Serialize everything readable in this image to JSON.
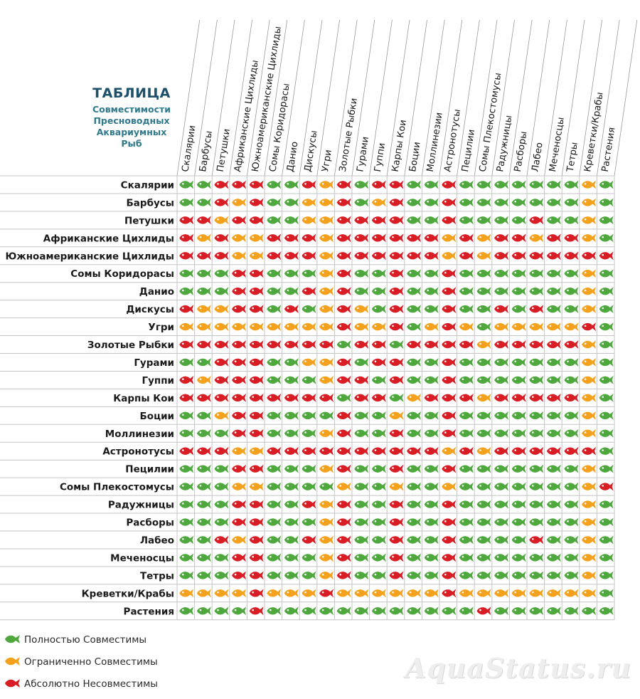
{
  "title": {
    "main": "ТАБЛИЦА",
    "line1": "Совместимости",
    "line2": "Пресноводных",
    "line3": "Аквариумных",
    "line4": "Рыб"
  },
  "colors": {
    "g": "#4ea83d",
    "y": "#f4a11d",
    "r": "#d81d25",
    "grid": "#c4c4c4",
    "diag": "#999999",
    "text": "#1a1a1a"
  },
  "legend": [
    {
      "color": "g",
      "label": "Полностью Совместимы"
    },
    {
      "color": "y",
      "label": "Ограниченно Совместимы"
    },
    {
      "color": "r",
      "label": "Абсолютно Несовместимы"
    }
  ],
  "watermark": "AquaStatus.ru",
  "chart_data": {
    "type": "table",
    "species": [
      "Скалярии",
      "Барбусы",
      "Петушки",
      "Африканские Цихлиды",
      "Южноамериканские Цихлиды",
      "Сомы Коридорасы",
      "Данио",
      "Дискусы",
      "Угри",
      "Золотые Рыбки",
      "Гурами",
      "Гуппи",
      "Карпы Кои",
      "Боции",
      "Моллинезии",
      "Астронотусы",
      "Пецилии",
      "Сомы Плекостомусы",
      "Радужницы",
      "Расборы",
      "Лабео",
      "Меченосцы",
      "Тетры",
      "Креветки/Крабы",
      "Растения"
    ],
    "rows": [
      {
        "label": "Скалярии",
        "cells": [
          "g",
          "g",
          "r",
          "r",
          "r",
          "g",
          "g",
          "r",
          "y",
          "r",
          "g",
          "r",
          "r",
          "g",
          "g",
          "r",
          "g",
          "g",
          "g",
          "g",
          "g",
          "g",
          "g",
          "y",
          "g"
        ]
      },
      {
        "label": "Барбусы",
        "cells": [
          "g",
          "g",
          "r",
          "y",
          "r",
          "g",
          "g",
          "y",
          "y",
          "r",
          "g",
          "y",
          "r",
          "g",
          "g",
          "r",
          "g",
          "g",
          "g",
          "g",
          "g",
          "g",
          "g",
          "y",
          "g"
        ]
      },
      {
        "label": "Петушки",
        "cells": [
          "r",
          "r",
          "y",
          "r",
          "r",
          "g",
          "g",
          "y",
          "y",
          "r",
          "r",
          "r",
          "r",
          "g",
          "g",
          "r",
          "g",
          "g",
          "g",
          "g",
          "r",
          "g",
          "g",
          "y",
          "g"
        ]
      },
      {
        "label": "Африканские Цихлиды",
        "cells": [
          "r",
          "y",
          "r",
          "y",
          "y",
          "r",
          "r",
          "r",
          "y",
          "r",
          "r",
          "r",
          "r",
          "r",
          "r",
          "y",
          "r",
          "y",
          "r",
          "r",
          "y",
          "r",
          "r",
          "y",
          "g"
        ]
      },
      {
        "label": "Южноамериканские Цихлиды",
        "cells": [
          "r",
          "r",
          "r",
          "y",
          "y",
          "r",
          "r",
          "r",
          "y",
          "r",
          "r",
          "r",
          "r",
          "r",
          "r",
          "y",
          "r",
          "y",
          "r",
          "r",
          "r",
          "r",
          "r",
          "r",
          "r"
        ]
      },
      {
        "label": "Сомы Коридорасы",
        "cells": [
          "g",
          "g",
          "g",
          "r",
          "r",
          "g",
          "g",
          "g",
          "y",
          "r",
          "g",
          "g",
          "r",
          "g",
          "g",
          "r",
          "g",
          "g",
          "g",
          "g",
          "g",
          "g",
          "g",
          "y",
          "g"
        ]
      },
      {
        "label": "Данио",
        "cells": [
          "g",
          "g",
          "g",
          "r",
          "r",
          "g",
          "g",
          "r",
          "y",
          "r",
          "g",
          "g",
          "r",
          "g",
          "g",
          "r",
          "g",
          "g",
          "g",
          "g",
          "g",
          "g",
          "g",
          "y",
          "g"
        ]
      },
      {
        "label": "Дискусы",
        "cells": [
          "r",
          "y",
          "y",
          "r",
          "r",
          "g",
          "r",
          "g",
          "y",
          "r",
          "y",
          "g",
          "r",
          "g",
          "g",
          "r",
          "g",
          "g",
          "r",
          "g",
          "r",
          "g",
          "g",
          "y",
          "g"
        ]
      },
      {
        "label": "Угри",
        "cells": [
          "y",
          "y",
          "y",
          "y",
          "y",
          "y",
          "y",
          "y",
          "y",
          "r",
          "y",
          "y",
          "r",
          "g",
          "y",
          "r",
          "y",
          "g",
          "y",
          "y",
          "y",
          "y",
          "y",
          "r",
          "g"
        ]
      },
      {
        "label": "Золотые Рыбки",
        "cells": [
          "r",
          "r",
          "r",
          "r",
          "r",
          "r",
          "r",
          "r",
          "r",
          "g",
          "r",
          "r",
          "g",
          "r",
          "r",
          "r",
          "r",
          "y",
          "r",
          "r",
          "r",
          "r",
          "r",
          "y",
          "g"
        ]
      },
      {
        "label": "Гурами",
        "cells": [
          "g",
          "g",
          "r",
          "r",
          "r",
          "g",
          "g",
          "y",
          "y",
          "r",
          "g",
          "r",
          "r",
          "g",
          "g",
          "r",
          "g",
          "g",
          "g",
          "g",
          "g",
          "g",
          "g",
          "y",
          "g"
        ]
      },
      {
        "label": "Гуппи",
        "cells": [
          "r",
          "y",
          "r",
          "r",
          "r",
          "g",
          "g",
          "g",
          "y",
          "r",
          "r",
          "g",
          "r",
          "g",
          "g",
          "r",
          "g",
          "g",
          "g",
          "g",
          "g",
          "g",
          "g",
          "y",
          "g"
        ]
      },
      {
        "label": "Карпы Кои",
        "cells": [
          "r",
          "r",
          "r",
          "r",
          "r",
          "r",
          "r",
          "r",
          "r",
          "g",
          "r",
          "r",
          "g",
          "y",
          "r",
          "r",
          "r",
          "y",
          "r",
          "r",
          "r",
          "r",
          "r",
          "y",
          "g"
        ]
      },
      {
        "label": "Боции",
        "cells": [
          "g",
          "g",
          "y",
          "r",
          "r",
          "g",
          "g",
          "g",
          "g",
          "r",
          "g",
          "g",
          "y",
          "g",
          "g",
          "r",
          "g",
          "g",
          "g",
          "g",
          "g",
          "g",
          "g",
          "y",
          "g"
        ]
      },
      {
        "label": "Моллинезии",
        "cells": [
          "g",
          "g",
          "g",
          "r",
          "r",
          "g",
          "g",
          "g",
          "y",
          "r",
          "g",
          "g",
          "r",
          "g",
          "g",
          "r",
          "g",
          "g",
          "g",
          "g",
          "g",
          "g",
          "g",
          "y",
          "g"
        ]
      },
      {
        "label": "Астронотусы",
        "cells": [
          "r",
          "r",
          "r",
          "y",
          "y",
          "r",
          "r",
          "r",
          "r",
          "r",
          "r",
          "r",
          "r",
          "r",
          "r",
          "y",
          "r",
          "y",
          "r",
          "r",
          "r",
          "r",
          "r",
          "r",
          "g"
        ]
      },
      {
        "label": "Пецилии",
        "cells": [
          "g",
          "g",
          "g",
          "r",
          "r",
          "g",
          "g",
          "g",
          "y",
          "r",
          "g",
          "g",
          "r",
          "g",
          "g",
          "r",
          "g",
          "g",
          "g",
          "g",
          "g",
          "g",
          "g",
          "y",
          "g"
        ]
      },
      {
        "label": "Сомы Плекостомусы",
        "cells": [
          "g",
          "g",
          "g",
          "y",
          "y",
          "g",
          "g",
          "g",
          "g",
          "y",
          "g",
          "g",
          "y",
          "g",
          "g",
          "y",
          "g",
          "g",
          "g",
          "g",
          "g",
          "g",
          "g",
          "y",
          "r"
        ]
      },
      {
        "label": "Радужницы",
        "cells": [
          "g",
          "g",
          "g",
          "r",
          "r",
          "g",
          "g",
          "r",
          "y",
          "r",
          "g",
          "g",
          "r",
          "g",
          "g",
          "r",
          "g",
          "g",
          "g",
          "g",
          "g",
          "g",
          "g",
          "y",
          "g"
        ]
      },
      {
        "label": "Расборы",
        "cells": [
          "g",
          "g",
          "g",
          "r",
          "r",
          "g",
          "g",
          "g",
          "y",
          "r",
          "g",
          "g",
          "r",
          "g",
          "g",
          "r",
          "g",
          "g",
          "g",
          "g",
          "g",
          "g",
          "g",
          "y",
          "g"
        ]
      },
      {
        "label": "Лабео",
        "cells": [
          "g",
          "g",
          "r",
          "y",
          "r",
          "g",
          "g",
          "r",
          "y",
          "r",
          "g",
          "g",
          "r",
          "g",
          "g",
          "r",
          "g",
          "g",
          "g",
          "g",
          "r",
          "g",
          "g",
          "y",
          "g"
        ]
      },
      {
        "label": "Меченосцы",
        "cells": [
          "g",
          "g",
          "g",
          "r",
          "r",
          "g",
          "g",
          "g",
          "y",
          "r",
          "g",
          "g",
          "r",
          "g",
          "g",
          "r",
          "g",
          "g",
          "g",
          "g",
          "g",
          "g",
          "g",
          "y",
          "g"
        ]
      },
      {
        "label": "Тетры",
        "cells": [
          "g",
          "g",
          "g",
          "r",
          "r",
          "g",
          "g",
          "g",
          "y",
          "r",
          "g",
          "g",
          "r",
          "g",
          "g",
          "r",
          "g",
          "g",
          "g",
          "g",
          "g",
          "g",
          "g",
          "y",
          "g"
        ]
      },
      {
        "label": "Креветки/Крабы",
        "cells": [
          "y",
          "y",
          "y",
          "y",
          "r",
          "y",
          "y",
          "y",
          "r",
          "y",
          "y",
          "y",
          "y",
          "y",
          "y",
          "r",
          "y",
          "y",
          "y",
          "y",
          "y",
          "y",
          "y",
          "y",
          "g"
        ]
      },
      {
        "label": "Растения",
        "cells": [
          "g",
          "g",
          "g",
          "g",
          "r",
          "g",
          "g",
          "g",
          "g",
          "g",
          "g",
          "g",
          "g",
          "g",
          "g",
          "g",
          "g",
          "r",
          "g",
          "g",
          "g",
          "g",
          "g",
          "g",
          "g"
        ]
      }
    ]
  }
}
